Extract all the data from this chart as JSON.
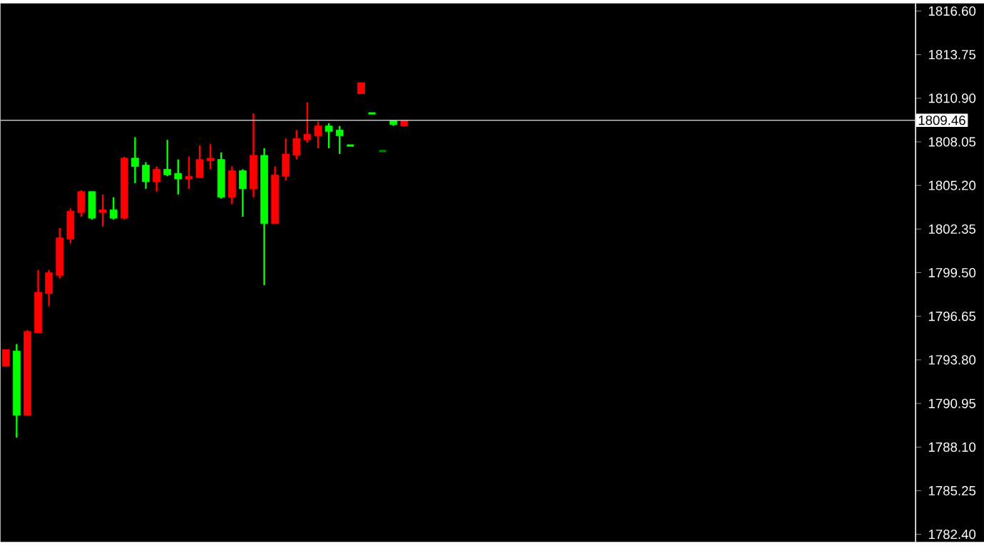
{
  "chart_data": {
    "type": "candlestick",
    "categories": [
      null,
      null,
      null,
      null,
      null,
      null,
      null,
      null,
      null,
      null,
      null,
      null,
      null,
      null,
      null,
      null,
      null,
      null,
      null,
      null,
      null,
      null,
      null,
      null,
      null,
      null,
      null,
      null,
      null,
      null,
      null,
      null,
      null,
      null,
      null,
      null,
      null,
      null,
      null,
      null,
      null,
      null,
      null,
      null,
      null,
      null,
      null,
      null,
      null,
      null,
      null,
      null,
      null,
      null,
      null,
      null,
      null,
      null,
      null,
      null,
      null,
      null,
      null,
      null,
      null,
      null,
      null,
      null,
      null,
      null,
      null,
      null,
      null,
      null,
      null,
      null,
      null,
      null,
      null,
      null,
      null,
      null,
      null,
      null,
      null
    ],
    "ohlc": [
      [
        1793.38,
        1794.47,
        1793.38,
        1794.47
      ],
      [
        1794.38,
        1794.84,
        1788.72,
        1790.18
      ],
      [
        1790.18,
        1795.75,
        1790.18,
        1795.66
      ],
      [
        1795.57,
        1799.68,
        1795.57,
        1798.22
      ],
      [
        1798.13,
        1799.68,
        1797.31,
        1799.5
      ],
      [
        1799.32,
        1802.42,
        1799.13,
        1801.78
      ],
      [
        1801.69,
        1803.7,
        1801.42,
        1803.52
      ],
      [
        1803.43,
        1804.89,
        1803.15,
        1804.8
      ],
      [
        1804.8,
        1804.8,
        1802.97,
        1803.06
      ],
      [
        1803.43,
        1804.61,
        1802.51,
        1803.61
      ],
      [
        1803.61,
        1804.43,
        1802.97,
        1803.06
      ],
      [
        1803.06,
        1807.08,
        1802.97,
        1806.99
      ],
      [
        1806.99,
        1808.36,
        1805.35,
        1806.44
      ],
      [
        1806.53,
        1806.72,
        1804.98,
        1805.44
      ],
      [
        1805.44,
        1806.44,
        1804.8,
        1806.26
      ],
      [
        1806.26,
        1808.18,
        1805.8,
        1805.89
      ],
      [
        1805.99,
        1806.9,
        1804.61,
        1805.62
      ],
      [
        1805.62,
        1807.08,
        1804.98,
        1805.8
      ],
      [
        1805.71,
        1807.81,
        1805.71,
        1806.9
      ],
      [
        1806.81,
        1807.9,
        1806.26,
        1806.99
      ],
      [
        1806.9,
        1807.36,
        1804.34,
        1804.43
      ],
      [
        1804.43,
        1806.44,
        1803.98,
        1806.17
      ],
      [
        1806.17,
        1806.26,
        1803.15,
        1804.98
      ],
      [
        1804.98,
        1809.91,
        1804.43,
        1807.17
      ],
      [
        1807.17,
        1807.63,
        1798.68,
        1802.7
      ],
      [
        1802.7,
        1806.44,
        1802.7,
        1805.89
      ],
      [
        1805.8,
        1808.27,
        1805.53,
        1807.26
      ],
      [
        1807.17,
        1808.82,
        1806.9,
        1808.27
      ],
      [
        1808.18,
        1810.64,
        1807.99,
        1808.54
      ],
      [
        1808.45,
        1809.37,
        1807.63,
        1809.09
      ],
      [
        1809.09,
        1809.27,
        1807.63,
        1808.73
      ],
      [
        1808.82,
        1809.09,
        1807.26,
        1808.45
      ],
      [
        1807.81,
        1807.81,
        1807.81,
        1807.81
      ],
      [
        1811.19,
        1811.92,
        1811.19,
        1811.92
      ],
      [
        1809.91,
        1809.91,
        1809.91,
        1809.91
      ],
      [
        1807.45,
        1807.45,
        1807.45,
        1807.45
      ],
      [
        1809.46,
        1809.46,
        1809.09,
        1809.18
      ],
      [
        1809.09,
        1809.46,
        1809.09,
        1809.46
      ],
      null,
      null,
      null,
      null,
      null,
      null,
      null,
      null,
      null,
      null,
      null,
      null,
      null,
      null,
      null,
      null,
      null,
      null,
      null,
      null,
      null,
      null,
      null,
      null,
      null,
      null,
      null,
      null,
      null,
      null,
      null,
      null,
      null,
      null,
      null,
      null,
      null,
      null,
      null,
      null,
      null,
      null,
      null,
      null,
      null,
      null,
      null
    ],
    "colors": [
      "#ff0000",
      "#00ff00",
      "#ff0000",
      "#ff0000",
      "#ff0000",
      "#ff0000",
      "#ff0000",
      "#ff0000",
      "#00ff00",
      "#ff0000",
      "#00ff00",
      "#ff0000",
      "#00ff00",
      "#00ff00",
      "#ff0000",
      "#00ff00",
      "#00ff00",
      "#ff0000",
      "#ff0000",
      "#ff0000",
      "#00ff00",
      "#ff0000",
      "#00ff00",
      "#ff0000",
      "#00ff00",
      "#ff0000",
      "#ff0000",
      "#ff0000",
      "#ff0000",
      "#ff0000",
      "#00ff00",
      "#00ff00",
      "#00ff00",
      "#ff0000",
      "#00ff00",
      "#008000",
      "#00ff00",
      "#ff0000",
      null,
      null,
      null,
      null,
      null,
      null,
      null,
      null,
      null,
      null,
      null,
      null,
      null,
      null,
      null,
      null,
      null,
      null,
      null,
      null,
      null,
      null,
      null,
      null,
      null,
      null,
      null,
      null,
      null,
      null,
      null,
      null,
      null,
      null,
      null,
      null,
      null,
      null,
      null,
      null,
      null,
      null,
      null,
      null,
      null,
      null,
      null
    ],
    "ylim": [
      1781.9,
      1817.1
    ],
    "yticks": [
      {
        "value": 1782.4,
        "label": "1782.40"
      },
      {
        "value": 1785.25,
        "label": "1785.25"
      },
      {
        "value": 1788.1,
        "label": "1788.10"
      },
      {
        "value": 1790.95,
        "label": "1790.95"
      },
      {
        "value": 1793.8,
        "label": "1793.80"
      },
      {
        "value": 1796.65,
        "label": "1796.65"
      },
      {
        "value": 1799.5,
        "label": "1799.50"
      },
      {
        "value": 1802.35,
        "label": "1802.35"
      },
      {
        "value": 1805.2,
        "label": "1805.20"
      },
      {
        "value": 1808.05,
        "label": "1808.05"
      },
      {
        "value": 1810.9,
        "label": "1810.90"
      },
      {
        "value": 1813.75,
        "label": "1813.75"
      },
      {
        "value": 1816.6,
        "label": "1816.60"
      }
    ],
    "ref_lines": [
      {
        "axis": "y",
        "value": 1809.46,
        "label": "1809.46",
        "color": "#c0c0c0"
      }
    ],
    "grid": false
  }
}
